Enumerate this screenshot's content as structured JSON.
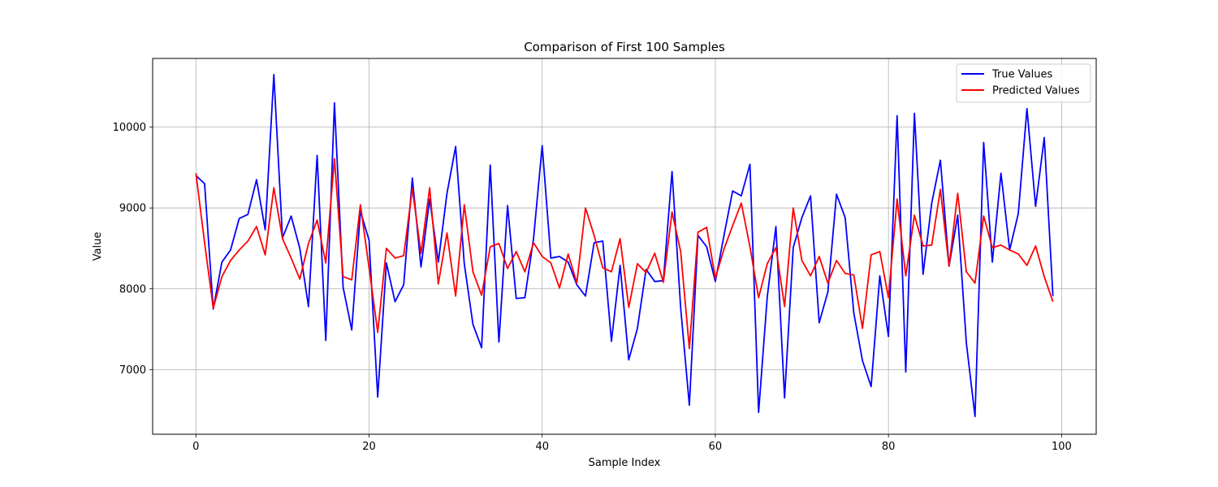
{
  "chart_data": {
    "type": "line",
    "title": "Comparison of First 100 Samples",
    "xlabel": "Sample Index",
    "ylabel": "Value",
    "xlim": [
      -5,
      104
    ],
    "ylim": [
      6200,
      10850
    ],
    "xticks": [
      0,
      20,
      40,
      60,
      80,
      100
    ],
    "yticks": [
      7000,
      8000,
      9000,
      10000
    ],
    "grid": true,
    "legend_position": "top-right",
    "series": [
      {
        "name": "True Values",
        "color": "#0000ff",
        "values": [
          9400,
          9300,
          7750,
          8330,
          8480,
          8870,
          8920,
          9350,
          8730,
          10650,
          8630,
          8900,
          8500,
          7780,
          9650,
          7360,
          10300,
          8020,
          7490,
          8960,
          8600,
          6660,
          8320,
          7840,
          8050,
          9370,
          8270,
          9110,
          8330,
          9180,
          9760,
          8310,
          7560,
          7270,
          9530,
          7340,
          9030,
          7880,
          7890,
          8620,
          9770,
          8380,
          8400,
          8330,
          8050,
          7910,
          8570,
          8590,
          7350,
          8290,
          7120,
          7510,
          8240,
          8090,
          8100,
          9450,
          7760,
          6560,
          8660,
          8520,
          8090,
          8660,
          9210,
          9150,
          9540,
          6470,
          7900,
          8770,
          6650,
          8510,
          8880,
          9150,
          7580,
          7960,
          9170,
          8880,
          7700,
          7110,
          6790,
          8160,
          7410,
          10140,
          6970,
          10170,
          8180,
          9060,
          9590,
          8280,
          8910,
          7330,
          6420,
          9810,
          8330,
          9430,
          8480,
          8930,
          10230,
          9020,
          9870,
          7910
        ]
      },
      {
        "name": "Predicted Values",
        "color": "#ff0000",
        "values": [
          9430,
          8570,
          7760,
          8150,
          8350,
          8480,
          8590,
          8770,
          8420,
          9250,
          8620,
          8380,
          8120,
          8560,
          8850,
          8320,
          9610,
          8150,
          8110,
          9040,
          8260,
          7460,
          8500,
          8380,
          8410,
          9240,
          8440,
          9250,
          8060,
          8690,
          7910,
          9040,
          8210,
          7920,
          8520,
          8560,
          8250,
          8460,
          8210,
          8570,
          8400,
          8320,
          8010,
          8430,
          8070,
          9000,
          8660,
          8260,
          8210,
          8620,
          7770,
          8310,
          8200,
          8440,
          8080,
          8950,
          8460,
          7260,
          8700,
          8760,
          8130,
          8490,
          8780,
          9060,
          8520,
          7890,
          8310,
          8510,
          7780,
          9000,
          8350,
          8160,
          8400,
          8070,
          8350,
          8190,
          8170,
          7510,
          8420,
          8460,
          7890,
          9110,
          8160,
          8910,
          8530,
          8540,
          9230,
          8280,
          9180,
          8210,
          8070,
          8900,
          8510,
          8540,
          8480,
          8430,
          8290,
          8530,
          8150,
          7840
        ]
      }
    ]
  }
}
